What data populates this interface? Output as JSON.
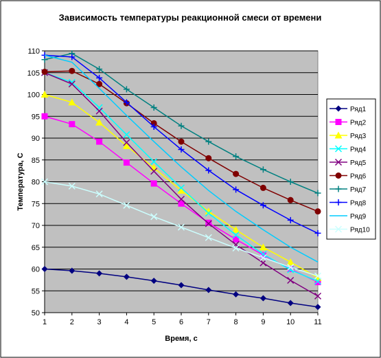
{
  "chart_data": {
    "type": "line",
    "title": "Зависимость температуры реакционной смеси от времени",
    "xlabel": "Время, с",
    "ylabel": "Температура, С",
    "x": [
      1,
      2,
      3,
      4,
      5,
      6,
      7,
      8,
      9,
      10,
      11
    ],
    "xlim": [
      1,
      11
    ],
    "ylim": [
      50,
      110
    ],
    "yticks": [
      50,
      55,
      60,
      65,
      70,
      75,
      80,
      85,
      90,
      95,
      100,
      105,
      110
    ],
    "grid": true,
    "legend_position": "right",
    "plot_background": "#c0c0c0",
    "series": [
      {
        "name": "Ряд1",
        "color": "#000080",
        "marker": "diamond",
        "values": [
          60.0,
          59.6,
          59.0,
          58.2,
          57.3,
          56.3,
          55.2,
          54.2,
          53.3,
          52.2,
          51.3
        ]
      },
      {
        "name": "Ряд2",
        "color": "#ff00ff",
        "marker": "square",
        "values": [
          95.0,
          93.2,
          89.2,
          84.4,
          79.6,
          75.0,
          70.6,
          66.8,
          63.2,
          60.0,
          57.0
        ]
      },
      {
        "name": "Ряд3",
        "color": "#ffff00",
        "marker": "triangle",
        "values": [
          100.0,
          98.2,
          93.6,
          88.2,
          83.2,
          78.0,
          73.2,
          69.0,
          65.0,
          61.6,
          58.0
        ]
      },
      {
        "name": "Ряд4",
        "color": "#00ffff",
        "marker": "x",
        "values": [
          105.0,
          102.8,
          97.0,
          90.8,
          84.6,
          78.6,
          72.8,
          67.8,
          63.4,
          59.8,
          57.2
        ]
      },
      {
        "name": "Ряд5",
        "color": "#800080",
        "marker": "x",
        "values": [
          105.0,
          102.4,
          96.2,
          89.0,
          82.4,
          76.0,
          70.4,
          65.6,
          61.4,
          57.4,
          53.8
        ]
      },
      {
        "name": "Ряд6",
        "color": "#800000",
        "marker": "circle",
        "values": [
          105.2,
          105.4,
          102.4,
          98.0,
          93.4,
          89.2,
          85.4,
          81.8,
          78.6,
          75.8,
          73.2
        ]
      },
      {
        "name": "Ряд7",
        "color": "#008080",
        "marker": "plus",
        "values": [
          108.0,
          109.4,
          105.8,
          101.2,
          97.0,
          92.8,
          89.2,
          85.8,
          82.8,
          80.0,
          77.4
        ]
      },
      {
        "name": "Ряд8",
        "color": "#0000ff",
        "marker": "plus",
        "values": [
          109.0,
          108.6,
          103.8,
          98.2,
          92.6,
          87.4,
          82.6,
          78.2,
          74.6,
          71.2,
          68.2
        ]
      },
      {
        "name": "Ряд9",
        "color": "#00ccff",
        "marker": "none",
        "values": [
          109.0,
          107.4,
          101.4,
          95.2,
          89.2,
          83.4,
          78.0,
          73.2,
          69.0,
          65.0,
          61.6
        ]
      },
      {
        "name": "Ряд10",
        "color": "#ccffff",
        "marker": "x",
        "values": [
          80.0,
          79.0,
          77.2,
          74.6,
          72.0,
          69.6,
          67.2,
          64.8,
          62.6,
          60.4,
          58.4
        ]
      }
    ]
  }
}
